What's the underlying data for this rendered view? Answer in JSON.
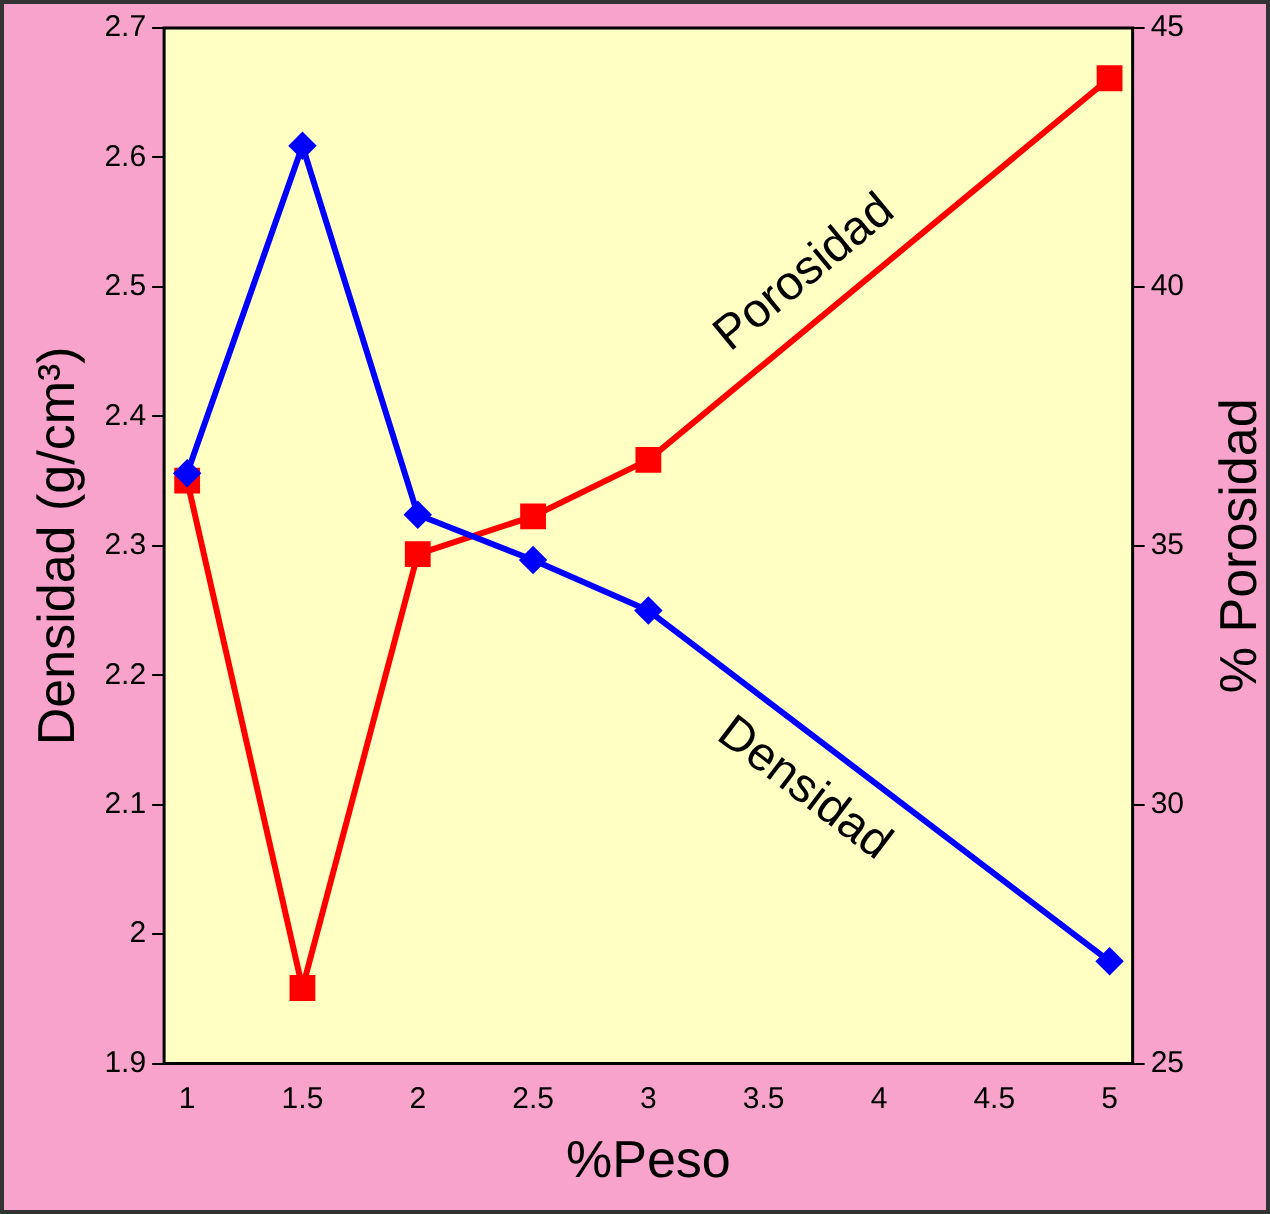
{
  "chart_data": {
    "type": "line",
    "xlabel": "%Peso",
    "ylabel": "Densidad (g/cm³)",
    "y2label": "% Porosidad",
    "x": [
      1,
      1.5,
      2,
      2.5,
      3,
      5
    ],
    "series": [
      {
        "name": "Densidad",
        "color": "#0000ff",
        "marker": "diamond",
        "values": [
          2.356,
          2.609,
          2.324,
          2.289,
          2.25,
          1.979
        ]
      },
      {
        "name": "Porosidad",
        "color": "#ff0000",
        "marker": "square",
        "axis": "y2",
        "values": [
          36.26,
          26.46,
          34.84,
          35.57,
          36.66,
          44.03
        ]
      }
    ],
    "xlim": [
      0.9,
      5.1
    ],
    "xticks": [
      1,
      1.5,
      2,
      2.5,
      3,
      3.5,
      4,
      4.5,
      5
    ],
    "ylim": [
      1.9,
      2.7
    ],
    "yticks": [
      1.9,
      2,
      2.1,
      2.2,
      2.3,
      2.4,
      2.5,
      2.6,
      2.7
    ],
    "y2lim": [
      25,
      45
    ],
    "y2ticks": [
      25,
      30,
      35,
      40,
      45
    ],
    "grid": false,
    "legend": false
  }
}
